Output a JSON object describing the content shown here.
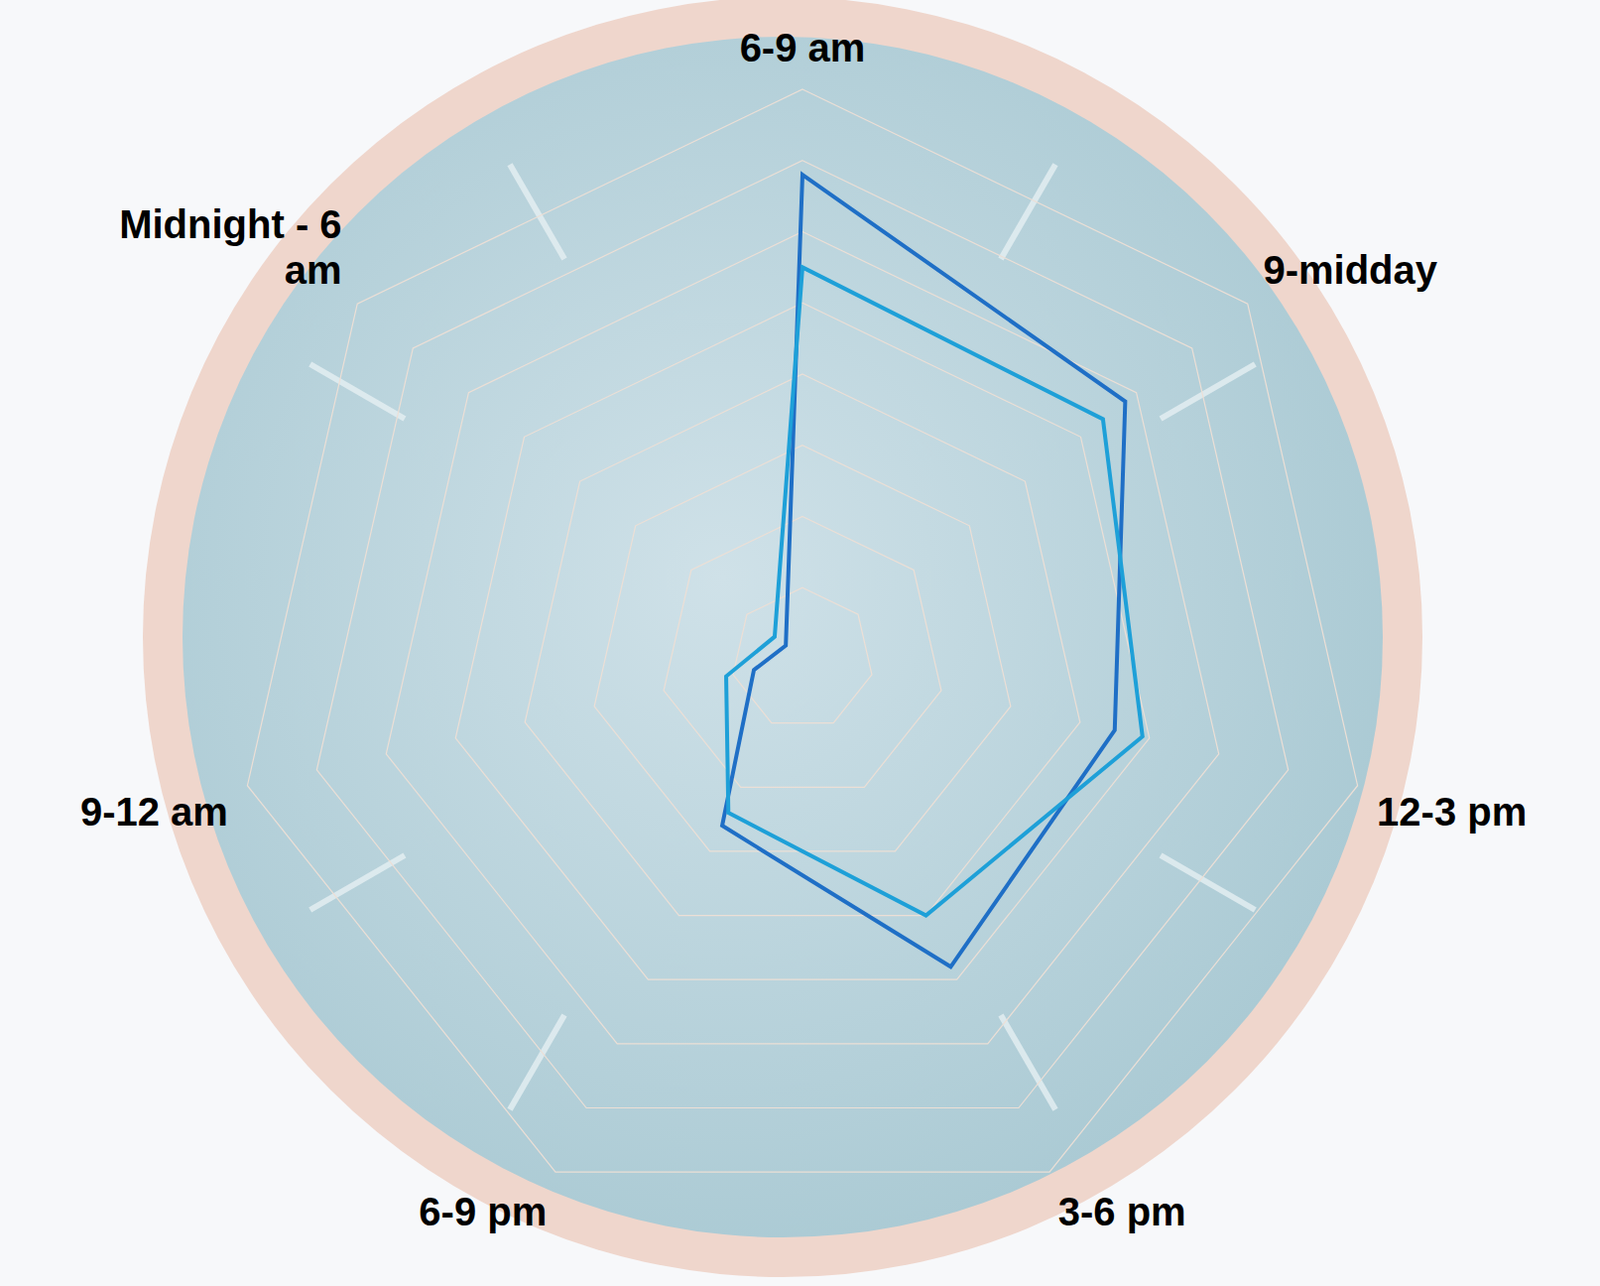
{
  "chart_data": {
    "type": "radar",
    "categories": [
      "6-9 am",
      "9-midday",
      "12-3 pm",
      "3-6 pm",
      "6-9 pm",
      "9-12 am",
      "Midnight - 6 am"
    ],
    "series": [
      {
        "color": "#1f6fc6",
        "values": [
          6.8,
          5.8,
          4.5,
          4.8,
          2.6,
          0.7,
          0.3
        ]
      },
      {
        "color": "#1ea0d8",
        "values": [
          5.5,
          5.4,
          4.9,
          4.0,
          2.4,
          1.1,
          0.5
        ]
      }
    ],
    "ylim": [
      0,
      8
    ],
    "yticks": [
      0,
      1,
      2,
      3,
      4,
      5,
      6,
      7,
      8
    ],
    "grid": true,
    "tick_labels": false
  }
}
